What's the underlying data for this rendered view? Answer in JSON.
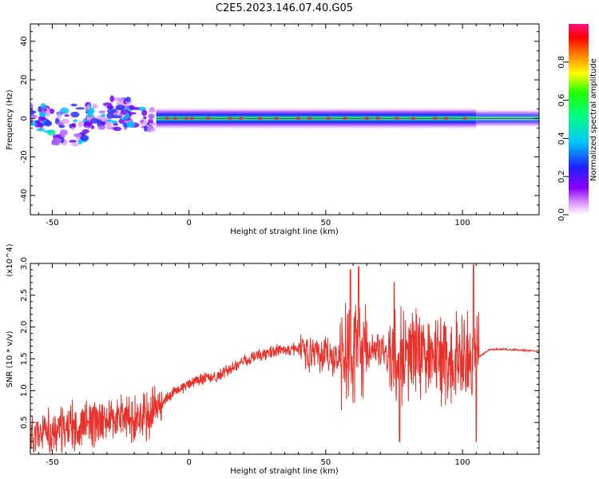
{
  "title": "C2E5.2023.146.07.40.G05",
  "chart_data": [
    {
      "type": "heatmap",
      "xlabel": "Height of straight line (km)",
      "ylabel": "Frequency (Hz)",
      "xlim": [
        -58,
        128
      ],
      "ylim": [
        -50,
        49
      ],
      "xticks": [
        -50,
        0,
        50,
        100
      ],
      "yticks": [
        -40,
        -20,
        0,
        20,
        40
      ],
      "colorbar": {
        "label": "Normalized spectral amplitude",
        "range": [
          0.0,
          1.0
        ],
        "ticks": [
          0.0,
          0.2,
          0.4,
          0.6,
          0.8
        ],
        "colormap": "rainbow (white-purple-blue-cyan-green-yellow-red-magenta)"
      },
      "features": [
        {
          "x_range": [
            -58,
            -12
          ],
          "freq_center": 0,
          "freq_halfwidth": 8,
          "amplitude": 0.45,
          "note": "scattered energy"
        },
        {
          "x_range": [
            -12,
            105
          ],
          "freq_center": 0,
          "freq_halfwidth": 2,
          "amplitude": 0.9,
          "note": "narrow band around 0 Hz"
        },
        {
          "x_range": [
            105,
            128
          ],
          "freq_center": 0,
          "freq_halfwidth": 3,
          "amplitude": 0.5
        },
        {
          "x_range": [
            -50,
            -38
          ],
          "freq_center": -10,
          "amplitude": 0.4
        },
        {
          "x_range": [
            -30,
            -20
          ],
          "freq_center": 8,
          "amplitude": 0.35
        }
      ]
    },
    {
      "type": "line",
      "xlabel": "Height of straight line (km)",
      "ylabel": "SNR (10 * v/v)",
      "y_multiplier": "(x10^4)",
      "xlim": [
        -58,
        128
      ],
      "ylim": [
        0.0,
        3.0
      ],
      "xticks": [
        -50,
        0,
        50,
        100
      ],
      "yticks": [
        0.5,
        1.0,
        1.5,
        2.0,
        2.5,
        3.0
      ],
      "color": "#e8312a",
      "series": [
        {
          "x": [
            -55,
            -45,
            -35,
            -25,
            -15,
            -10,
            -5,
            0,
            5,
            10,
            15,
            20,
            25,
            30,
            35,
            40,
            45,
            50,
            55,
            60,
            65,
            70,
            75,
            80,
            85,
            90,
            95,
            100,
            105,
            110,
            115,
            120,
            128
          ],
          "values": [
            0.3,
            0.4,
            0.5,
            0.55,
            0.6,
            0.8,
            1.0,
            1.1,
            1.2,
            1.2,
            1.35,
            1.45,
            1.55,
            1.6,
            1.65,
            1.65,
            1.55,
            1.55,
            1.5,
            1.55,
            1.6,
            1.65,
            1.5,
            1.55,
            1.6,
            1.5,
            1.5,
            1.55,
            1.5,
            1.65,
            1.65,
            1.64,
            1.62
          ],
          "peaks": [
            [
              59,
              2.9
            ],
            [
              62,
              2.95
            ],
            [
              75,
              2.7
            ],
            [
              77,
              0.2
            ],
            [
              104,
              2.98
            ],
            [
              105,
              0.2
            ]
          ]
        }
      ]
    }
  ],
  "ui": {
    "exp4": "4",
    "xmult": "x10",
    "cb_ticks_text": [
      "0.0",
      "0.2",
      "0.4",
      "0.6",
      "0.8"
    ],
    "xtick_labels": [
      "-50",
      "0",
      "50",
      "100"
    ],
    "heat_ytick_labels": [
      "-40",
      "-20",
      "0",
      "20",
      "40"
    ],
    "snr_ytick_labels": [
      "0.5",
      "1.0",
      "1.5",
      "2.0",
      "2.5",
      "3.0"
    ]
  }
}
